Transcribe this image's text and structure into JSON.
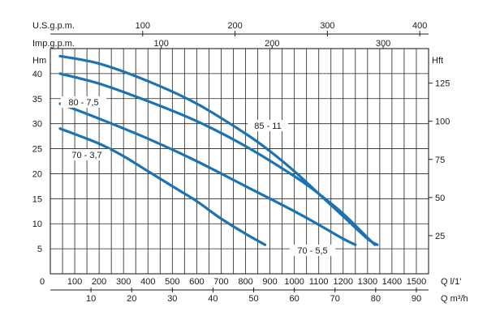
{
  "chart_data": {
    "type": "line",
    "title": "",
    "grid": true,
    "x_axes": {
      "flow_lpm": {
        "label": "Q  l/1'",
        "ticks": [
          0,
          100,
          200,
          300,
          400,
          500,
          600,
          700,
          800,
          900,
          1000,
          1100,
          1200,
          1300,
          1400,
          1500
        ],
        "range": [
          0,
          1550
        ]
      },
      "flow_m3h": {
        "label": "Q  m³/h",
        "ticks": [
          10,
          20,
          30,
          40,
          50,
          60,
          70,
          80,
          90
        ]
      },
      "us_gpm": {
        "label": "U.S.g.p.m.",
        "ticks": [
          100,
          200,
          300,
          400
        ]
      },
      "imp_gpm": {
        "label": "Imp.g.p.m.",
        "ticks": [
          100,
          200,
          300
        ]
      }
    },
    "y_axes": {
      "head_m": {
        "label": "Hm",
        "ticks": [
          5,
          10,
          15,
          20,
          25,
          30,
          35,
          40
        ],
        "range": [
          0,
          45
        ]
      },
      "head_ft": {
        "label": "Hft",
        "ticks": [
          25,
          50,
          75,
          100,
          125
        ]
      }
    },
    "series": [
      {
        "name": "85 - 11",
        "x": [
          40,
          200,
          400,
          600,
          800,
          900,
          1000,
          1100,
          1200,
          1300,
          1340
        ],
        "y": [
          43.5,
          42.0,
          38.5,
          34.0,
          28.0,
          24.5,
          20.5,
          16.0,
          11.5,
          7.0,
          5.8
        ]
      },
      {
        "name": "80 - 7,5",
        "x": [
          40,
          200,
          400,
          600,
          800,
          1000,
          1100,
          1200,
          1300,
          1330
        ],
        "y": [
          40.0,
          38.0,
          34.5,
          30.5,
          25.5,
          19.5,
          16.0,
          12.0,
          7.2,
          5.8
        ]
      },
      {
        "name": "70 - 5,5",
        "x": [
          40,
          200,
          400,
          600,
          800,
          1000,
          1100,
          1200,
          1250
        ],
        "y": [
          34.0,
          31.0,
          27.0,
          22.5,
          17.5,
          12.5,
          9.8,
          7.0,
          5.8
        ]
      },
      {
        "name": "70 - 3,7",
        "x": [
          40,
          200,
          300,
          400,
          500,
          600,
          700,
          800,
          880
        ],
        "y": [
          29.0,
          26.0,
          23.5,
          20.5,
          17.5,
          14.5,
          11.0,
          8.0,
          5.8
        ]
      }
    ]
  }
}
